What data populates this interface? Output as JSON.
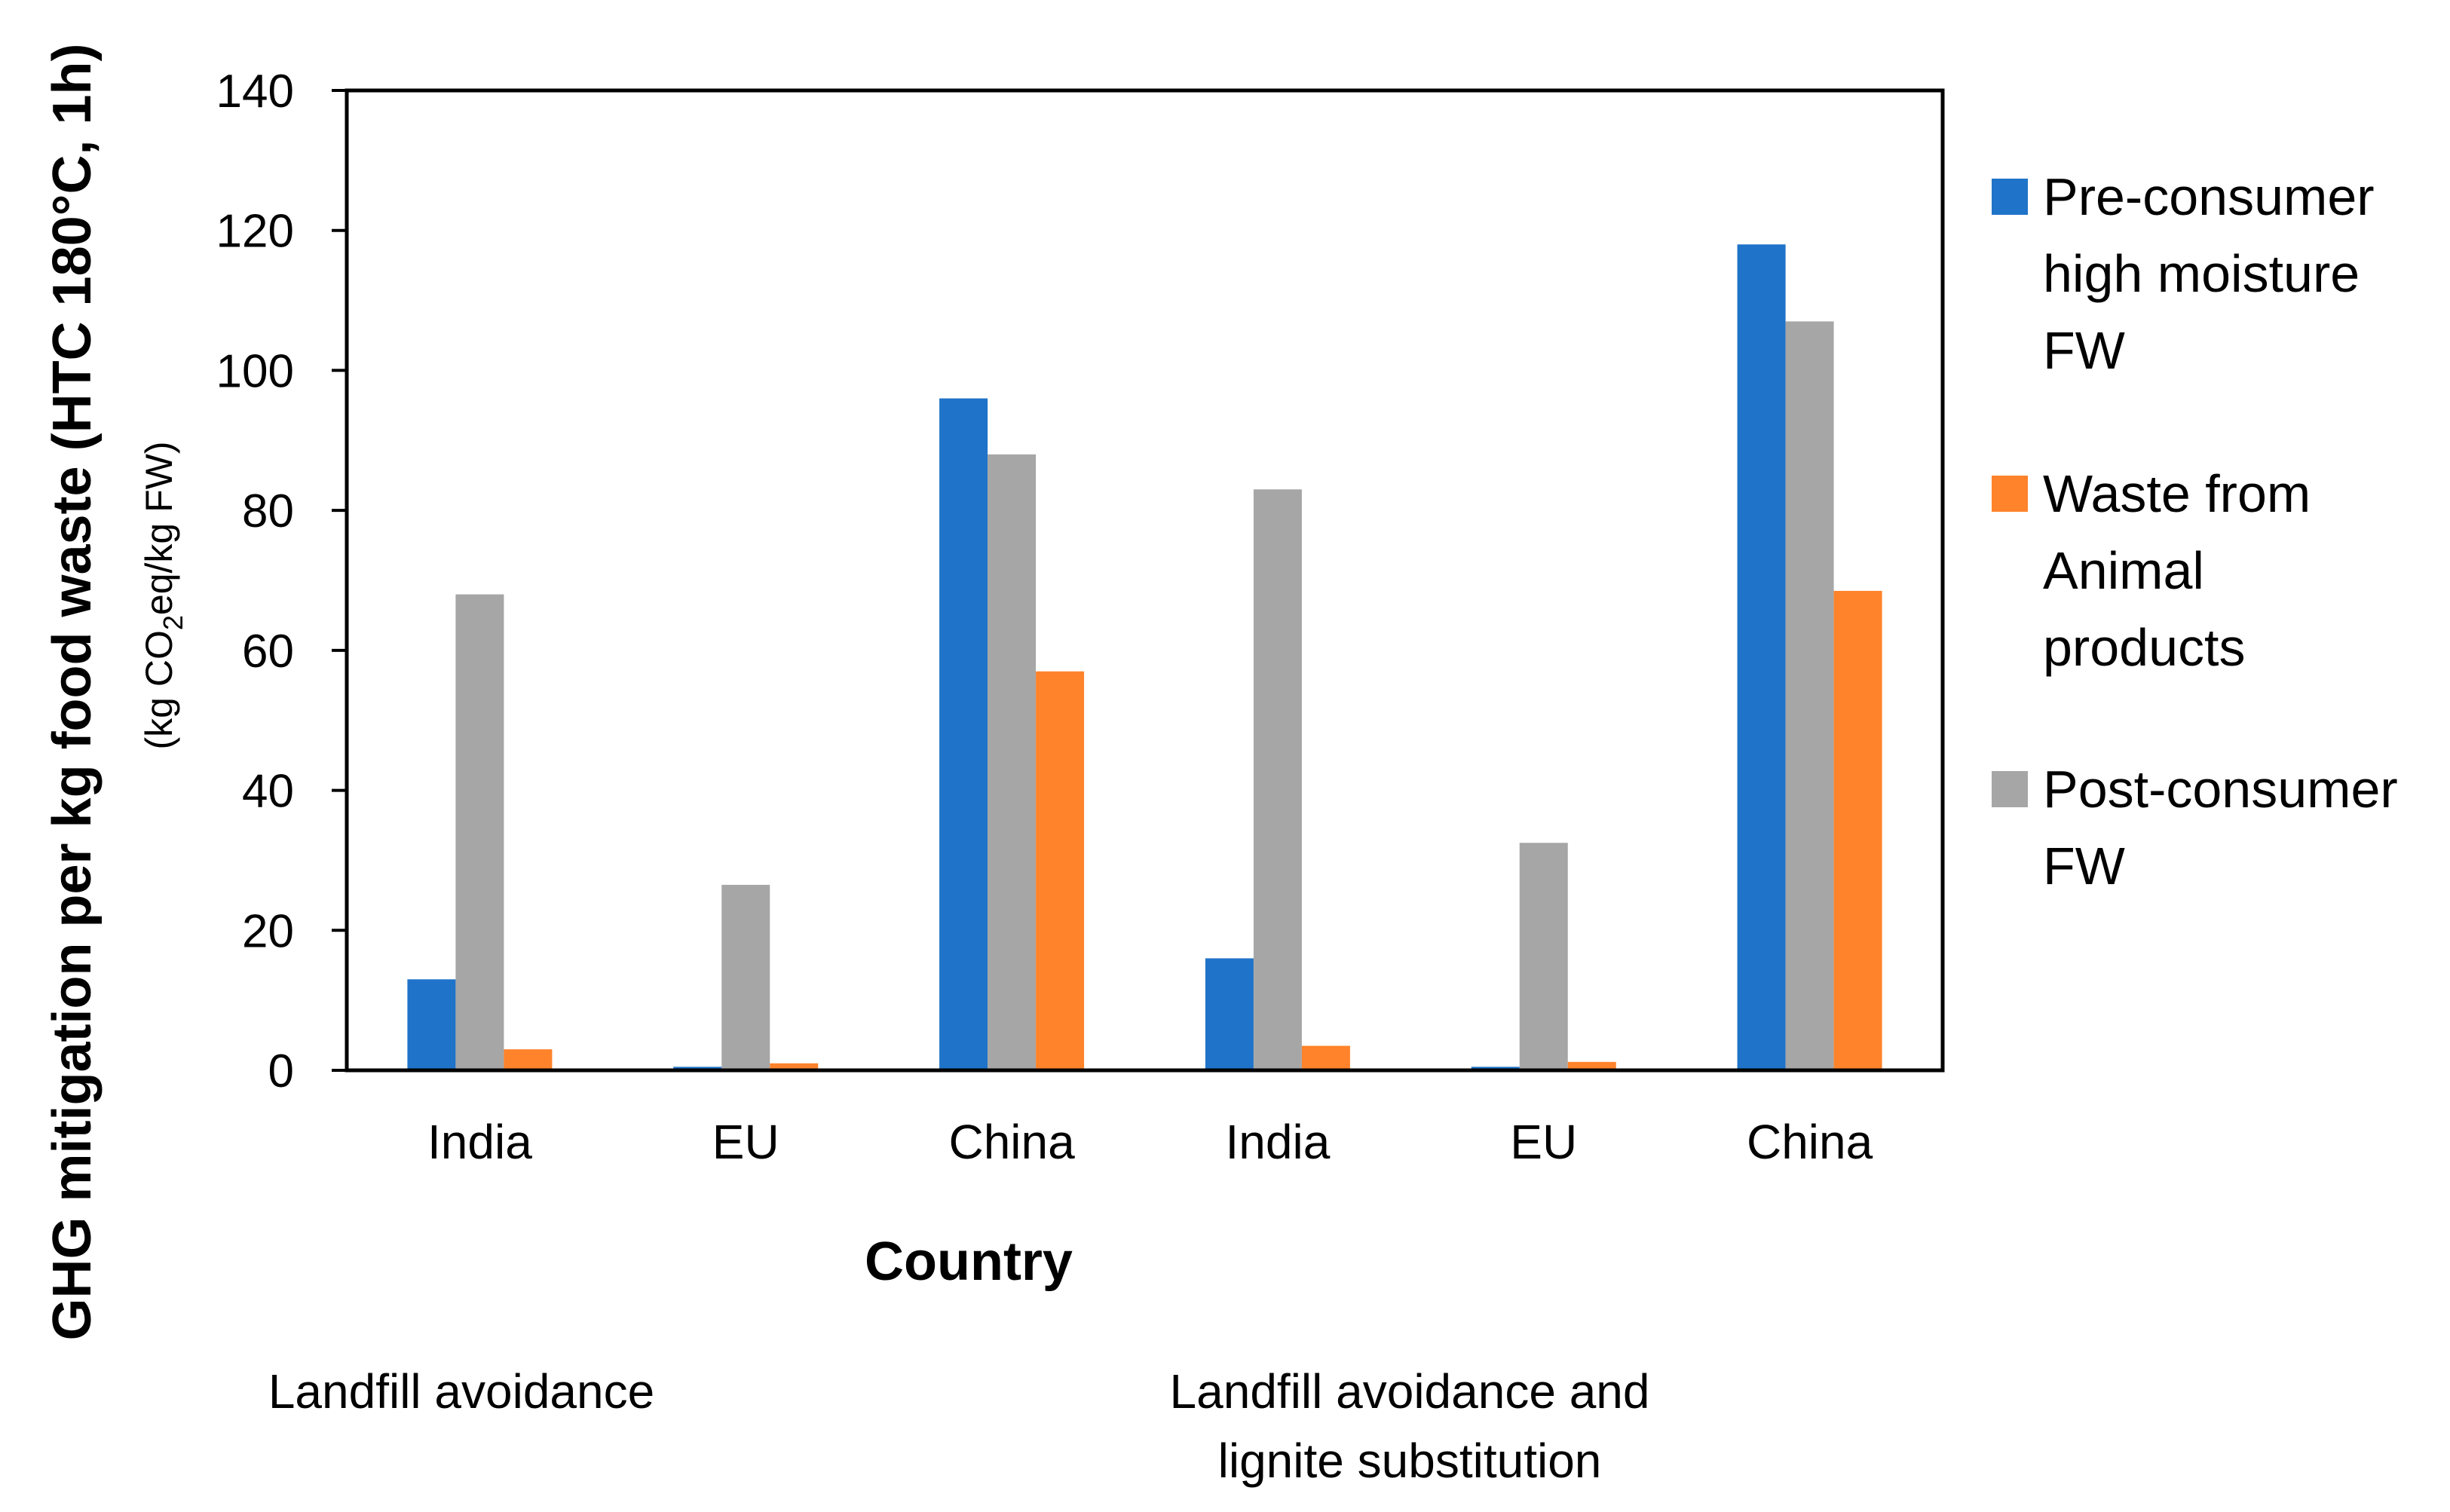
{
  "chart_data": {
    "type": "bar",
    "categories": [
      "India",
      "EU",
      "China",
      "India",
      "EU",
      "China"
    ],
    "groups": [
      {
        "label_lines": [
          "Landfill avoidance"
        ]
      },
      {
        "label_lines": [
          "Landfill avoidance and",
          "lignite substitution"
        ]
      }
    ],
    "series": [
      {
        "name_lines": [
          "Pre-consumer",
          "high moisture",
          "FW"
        ],
        "color": "#1F73C8",
        "values": [
          13,
          0.5,
          96,
          16,
          0.5,
          118
        ]
      },
      {
        "name_lines": [
          "Post-consumer",
          "FW"
        ],
        "color": "#A6A6A6",
        "values": [
          68,
          26.5,
          88,
          83,
          32.5,
          107
        ]
      },
      {
        "name_lines": [
          "Waste from",
          "Animal",
          "products"
        ],
        "color": "#FF832B",
        "values": [
          3,
          1,
          57,
          3.5,
          1.2,
          68.5
        ]
      }
    ],
    "legend_order": [
      0,
      2,
      1
    ],
    "ylim": [
      0,
      140
    ],
    "yticks": [
      0,
      20,
      40,
      60,
      80,
      100,
      120,
      140
    ],
    "xlabel": "Country",
    "ylabel": "GHG mitigation per kg food waste (HTC 180°C, 1h)",
    "ylabel_sub_prefix": "(kg CO",
    "ylabel_sub_subscript": "2",
    "ylabel_sub_suffix": "eq/kg FW)",
    "legend_position": "right"
  }
}
